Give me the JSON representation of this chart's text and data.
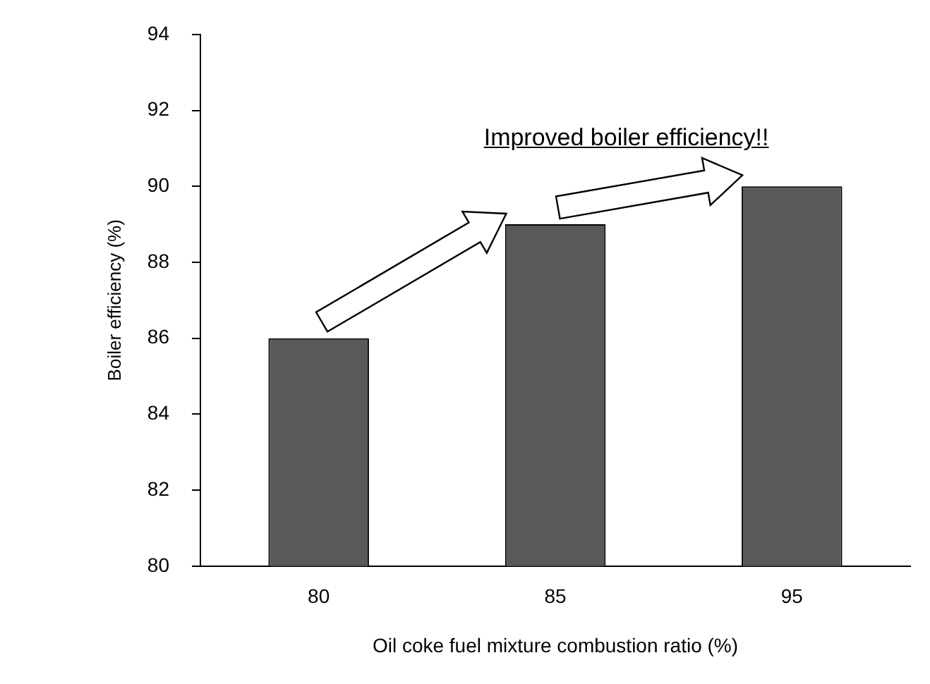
{
  "chart_data": {
    "type": "bar",
    "categories": [
      "80",
      "85",
      "95"
    ],
    "values": [
      86,
      89,
      90
    ],
    "color": "#595959",
    "ylim": [
      80,
      94
    ],
    "yticks": [
      80,
      82,
      84,
      86,
      88,
      90,
      92,
      94
    ],
    "xlabel": "Oil coke fuel mixture combustion ratio (%)",
    "ylabel": "Boiler efficiency (%)",
    "annotations": [
      "Improved boiler efficiency!!"
    ],
    "grid": false,
    "legend": false
  }
}
